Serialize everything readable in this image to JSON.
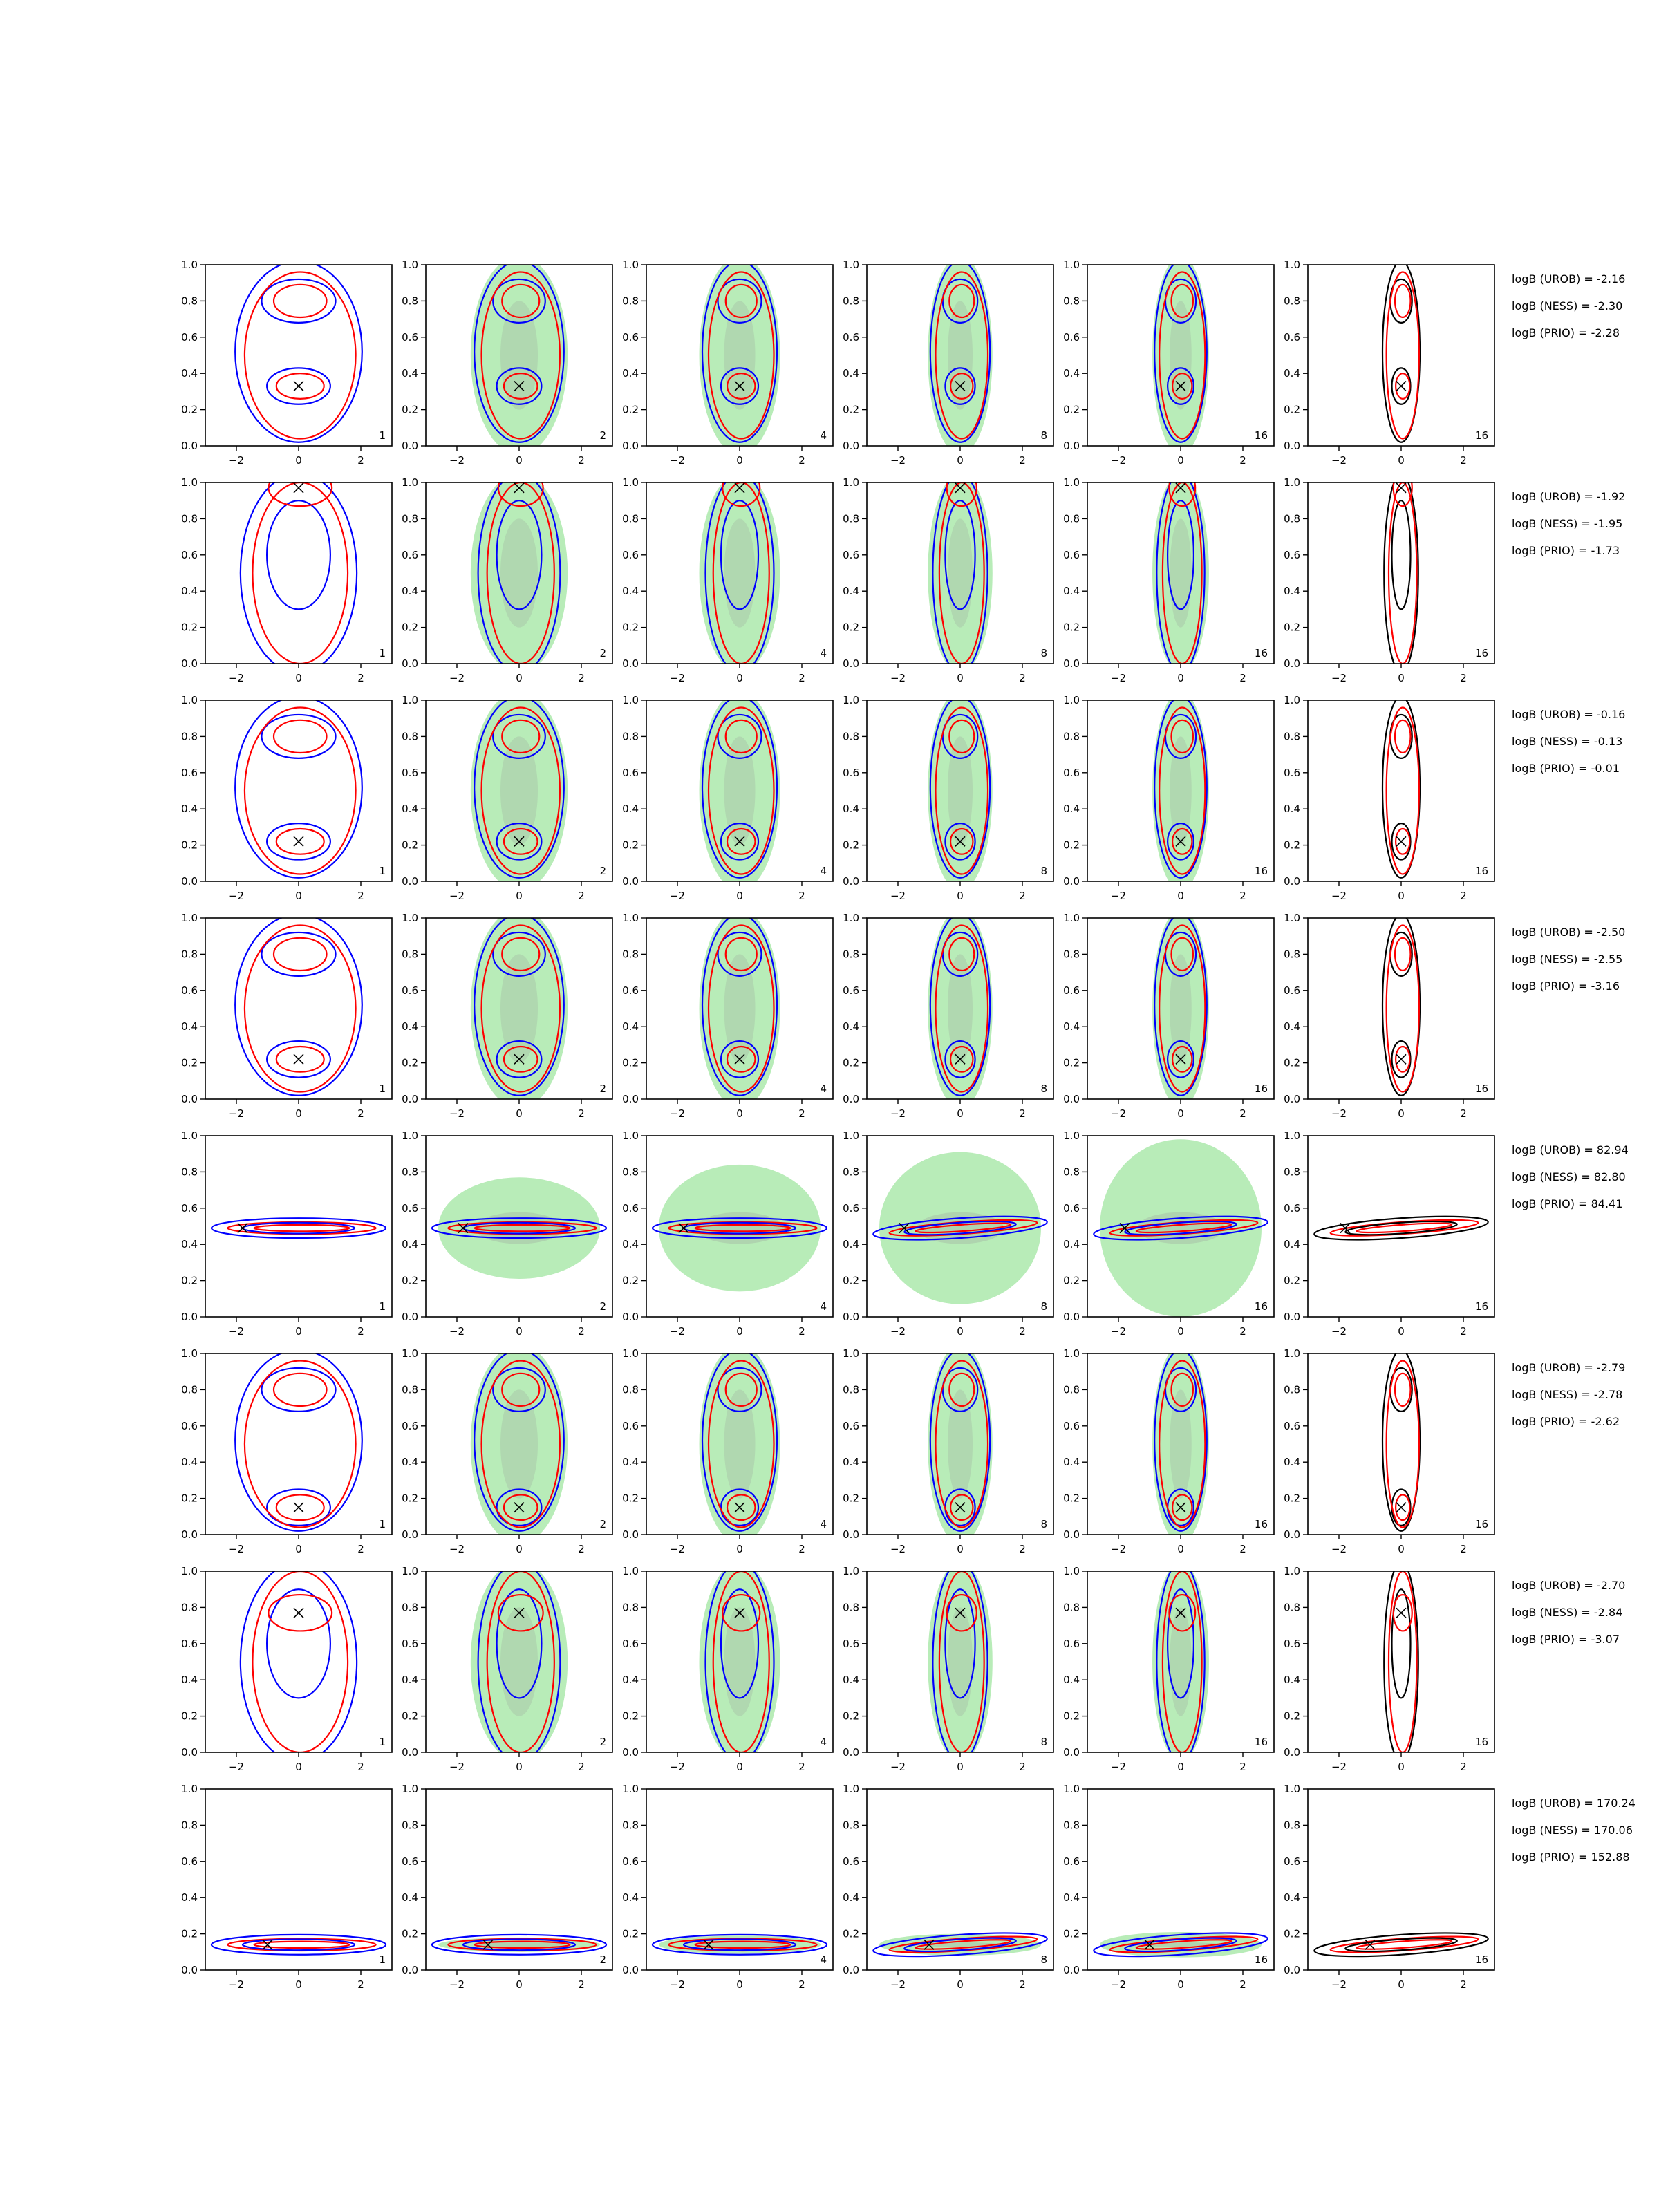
{
  "figure": {
    "x_ticks": [
      "−2",
      "0",
      "2"
    ],
    "y_ticks": [
      "0.0",
      "0.2",
      "0.4",
      "0.6",
      "0.8",
      "1.0"
    ],
    "colors": {
      "urob": "#0000ff",
      "ness": "#ff0000",
      "prio": "#000000",
      "fill_light": "#b8ecb8",
      "fill_dark": "#a8c4a8",
      "marker": "#000000"
    }
  },
  "chart_data": {
    "type": "contour_grid",
    "rows": 8,
    "cols": 6,
    "xlim": [
      -3,
      3
    ],
    "ylim": [
      0,
      1
    ],
    "x_ticks": [
      -2,
      0,
      2
    ],
    "y_ticks": [
      0.0,
      0.2,
      0.4,
      0.6,
      0.8,
      1.0
    ],
    "panel_labels": [
      "1",
      "2",
      "4",
      "8",
      "16",
      "16"
    ],
    "row_data": [
      {
        "truth": [
          0,
          0.33
        ],
        "shape": "two-mode",
        "logB": [
          "logB (UROB) = -2.16",
          "logB (NESS) = -2.30",
          "logB (PRIO) = -2.28"
        ]
      },
      {
        "truth": [
          0,
          0.97
        ],
        "shape": "vertical",
        "logB": [
          "logB (UROB) = -1.92",
          "logB (NESS) = -1.95",
          "logB (PRIO) = -1.73"
        ]
      },
      {
        "truth": [
          0,
          0.22
        ],
        "shape": "two-mode",
        "logB": [
          "logB (UROB) = -0.16",
          "logB (NESS) = -0.13",
          "logB (PRIO) = -0.01"
        ]
      },
      {
        "truth": [
          0,
          0.22
        ],
        "shape": "two-mode",
        "logB": [
          "logB (UROB) = -2.50",
          "logB (NESS) = -2.55",
          "logB (PRIO) = -3.16"
        ]
      },
      {
        "truth": [
          -1.8,
          0.49
        ],
        "shape": "horizontal",
        "logB": [
          "logB (UROB) = 82.94",
          "logB (NESS) = 82.80",
          "logB (PRIO) = 84.41"
        ]
      },
      {
        "truth": [
          0,
          0.15
        ],
        "shape": "two-mode",
        "logB": [
          "logB (UROB) = -2.79",
          "logB (NESS) = -2.78",
          "logB (PRIO) = -2.62"
        ]
      },
      {
        "truth": [
          0,
          0.77
        ],
        "shape": "vertical",
        "logB": [
          "logB (UROB) = -2.70",
          "logB (NESS) = -2.84",
          "logB (PRIO) = -3.07"
        ]
      },
      {
        "truth": [
          -1,
          0.14
        ],
        "shape": "flat",
        "logB": [
          "logB (UROB) = 170.24",
          "logB (NESS) = 170.06",
          "logB (PRIO) = 152.88"
        ]
      }
    ]
  }
}
